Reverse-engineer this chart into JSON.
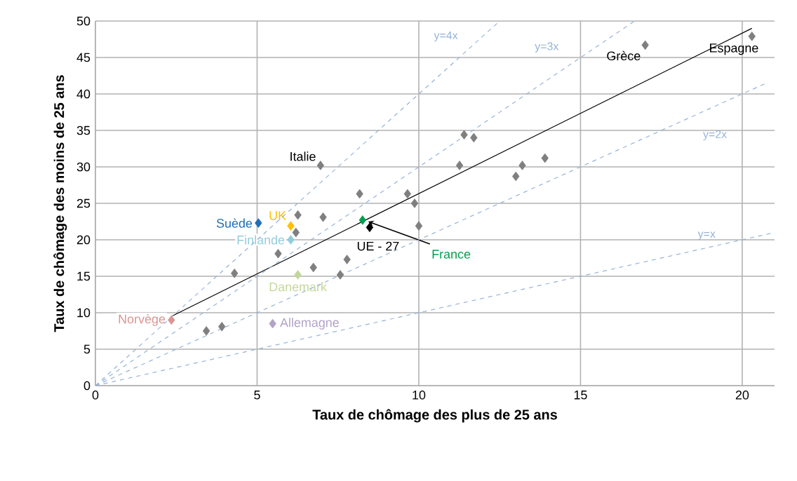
{
  "chart_data": {
    "type": "scatter",
    "xlabel": "Taux de chômage des plus de 25 ans",
    "ylabel": "Taux de chômage des moins de 25 ans",
    "xlim": [
      0,
      21
    ],
    "ylim": [
      0,
      50
    ],
    "xticks": [
      0,
      5,
      10,
      15,
      20
    ],
    "yticks": [
      0,
      5,
      10,
      15,
      20,
      25,
      30,
      35,
      40,
      45,
      50
    ],
    "grid": true,
    "marker": "diamond",
    "series": [
      {
        "color": "#7f7f7f",
        "x": [
          6.96,
          8.17,
          9.65,
          9.87,
          11.4,
          11.7,
          11.26,
          13.0,
          13.2,
          13.9,
          17.0,
          20.3,
          6.26,
          7.04,
          6.2,
          10.0,
          5.65,
          4.3,
          6.74,
          7.78,
          7.57,
          3.43,
          3.91
        ],
        "values": [
          30.2,
          26.3,
          26.3,
          25.0,
          34.4,
          34.0,
          30.2,
          28.7,
          30.2,
          31.2,
          46.7,
          47.9,
          23.4,
          23.1,
          21.0,
          21.9,
          18.1,
          15.4,
          16.2,
          17.3,
          15.2,
          7.5,
          8.1
        ]
      },
      {
        "name": "Suède",
        "color": "#1f6fb8",
        "x": [
          5.04
        ],
        "values": [
          22.3
        ]
      },
      {
        "name": "UK",
        "color": "#ffc000",
        "x": [
          6.04
        ],
        "values": [
          21.9
        ]
      },
      {
        "name": "Finlande",
        "color": "#92cddc",
        "x": [
          6.04
        ],
        "values": [
          20.0
        ]
      },
      {
        "name": "France",
        "color": "#00a050",
        "x": [
          8.26
        ],
        "values": [
          22.7
        ]
      },
      {
        "name": "UE - 27",
        "color": "#000000",
        "x": [
          8.48
        ],
        "values": [
          21.7
        ]
      },
      {
        "name": "Danemark",
        "color": "#c3d69b",
        "x": [
          6.26
        ],
        "values": [
          15.2
        ]
      },
      {
        "name": "Norvège",
        "color": "#d99694",
        "x": [
          2.35
        ],
        "values": [
          9.0
        ]
      },
      {
        "name": "Allemagne",
        "color": "#b3a2c7",
        "x": [
          5.48
        ],
        "values": [
          8.5
        ]
      },
      {
        "type": "line",
        "marker": "none",
        "color": "#000000",
        "x": [
          2.35,
          20.3
        ],
        "values": [
          9.5,
          49.0
        ]
      },
      {
        "type": "line",
        "marker": "none",
        "line_style": "dashed",
        "name": "y=x",
        "color": "#95b3d7",
        "x": [
          0,
          21
        ],
        "values": [
          0,
          21
        ]
      },
      {
        "type": "line",
        "marker": "none",
        "line_style": "dashed",
        "name": "y=2x",
        "color": "#95b3d7",
        "x": [
          0,
          20.7
        ],
        "values": [
          0,
          41.4
        ]
      },
      {
        "type": "line",
        "marker": "none",
        "line_style": "dashed",
        "name": "y=3x",
        "color": "#95b3d7",
        "x": [
          0,
          16.67
        ],
        "values": [
          0,
          50
        ]
      },
      {
        "type": "line",
        "marker": "none",
        "line_style": "dashed",
        "name": "y=4x",
        "color": "#95b3d7",
        "x": [
          0,
          12.5
        ],
        "values": [
          0,
          50
        ]
      }
    ],
    "annotations": [
      {
        "text": "Italie",
        "x": 6.96,
        "y": 30.2
      },
      {
        "text": "Grèce",
        "x": 17.0,
        "y": 46.7
      },
      {
        "text": "Espagne",
        "x": 20.3,
        "y": 47.9
      }
    ]
  }
}
